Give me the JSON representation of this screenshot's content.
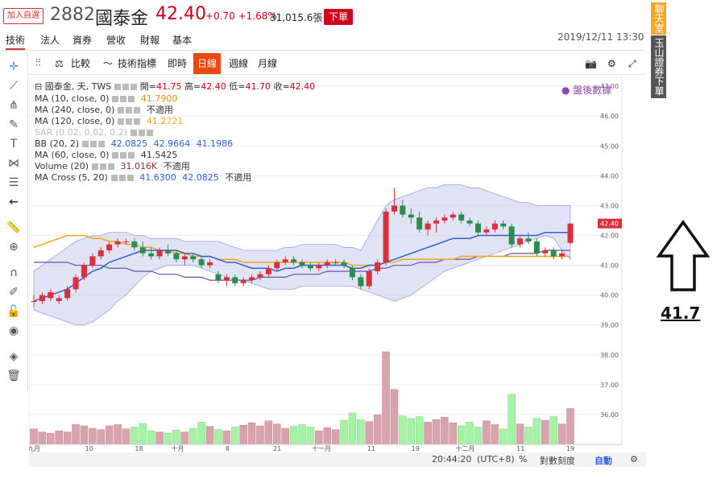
{
  "header": {
    "add_fav": "加入自選",
    "code": "2882",
    "name": "國泰金",
    "price": "42.40",
    "change": "+0.70 +1.68%",
    "volume": "31,015.6張",
    "order_btn": "下單",
    "datetime": "2019/12/11 13:30"
  },
  "main_tabs": [
    "技術",
    "法人",
    "資券",
    "營收",
    "財報",
    "基本"
  ],
  "toolbar": {
    "compare": "比較",
    "indicators": "技術指標",
    "realtime": "即時",
    "daily": "日線",
    "weekly": "週線",
    "monthly": "月線"
  },
  "legend": {
    "main": {
      "label": "國泰金, 天, TWS",
      "open_l": "開=",
      "open": "41.75",
      "high_l": "高=",
      "high": "42.40",
      "low_l": "低=",
      "low": "41.70",
      "close_l": "收=",
      "close": "42.40"
    },
    "ma10": {
      "label": "MA (10, close, 0)",
      "value": "41.7900"
    },
    "ma240": {
      "label": "MA (240, close, 0)",
      "value": "不適用"
    },
    "ma120": {
      "label": "MA (120, close, 0)",
      "value": "41.2721"
    },
    "sar": {
      "label": "SAR (0.02, 0.02, 0.2)"
    },
    "bb": {
      "label": "BB (20, 2)",
      "v1": "42.0825",
      "v2": "42.9664",
      "v3": "41.1986"
    },
    "ma60": {
      "label": "MA (60, close, 0)",
      "value": "41.5425"
    },
    "volume": {
      "label": "Volume (20)",
      "value": "31.016K",
      "value2": "不適用"
    },
    "macross": {
      "label": "MA Cross (5, 20)",
      "v1": "41.6300",
      "v2": "42.0825",
      "v3": "不適用"
    },
    "after_hours": "盤後數據"
  },
  "chart_data": {
    "type": "candlestick",
    "ylim": [
      35.0,
      47.3
    ],
    "yticks": [
      "47.00",
      "46.00",
      "45.00",
      "44.00",
      "43.00",
      "42.00",
      "41.00",
      "40.00",
      "39.00",
      "38.00",
      "37.00",
      "36.00"
    ],
    "last_price_tag": "42.40",
    "xticks": [
      "九月",
      "10",
      "18",
      "十月",
      "8",
      "21",
      "十一月",
      "11",
      "19",
      "十二月",
      "11",
      "19"
    ],
    "candles": [
      [
        39.8,
        40.0,
        39.6,
        39.8
      ],
      [
        39.8,
        40.1,
        39.7,
        40.0
      ],
      [
        39.9,
        40.2,
        39.8,
        40.1
      ],
      [
        39.8,
        40.0,
        39.7,
        39.9
      ],
      [
        39.9,
        40.3,
        39.8,
        40.2
      ],
      [
        40.2,
        40.7,
        40.1,
        40.6
      ],
      [
        40.6,
        41.1,
        40.5,
        41.0
      ],
      [
        41.0,
        41.4,
        40.9,
        41.3
      ],
      [
        41.3,
        41.6,
        41.2,
        41.5
      ],
      [
        41.5,
        41.8,
        41.4,
        41.7
      ],
      [
        41.7,
        41.9,
        41.6,
        41.8
      ],
      [
        41.8,
        41.9,
        41.7,
        41.8
      ],
      [
        41.8,
        41.9,
        41.5,
        41.6
      ],
      [
        41.6,
        41.8,
        41.3,
        41.4
      ],
      [
        41.4,
        41.6,
        41.2,
        41.3
      ],
      [
        41.3,
        41.6,
        41.2,
        41.5
      ],
      [
        41.5,
        41.7,
        41.3,
        41.4
      ],
      [
        41.4,
        41.5,
        41.1,
        41.2
      ],
      [
        41.2,
        41.4,
        41.0,
        41.3
      ],
      [
        41.3,
        41.4,
        41.1,
        41.2
      ],
      [
        41.2,
        41.3,
        40.9,
        41.0
      ],
      [
        41.0,
        41.2,
        40.9,
        41.1
      ],
      [
        40.7,
        40.8,
        40.4,
        40.5
      ],
      [
        40.5,
        40.7,
        40.3,
        40.6
      ],
      [
        40.6,
        40.7,
        40.3,
        40.4
      ],
      [
        40.4,
        40.6,
        40.3,
        40.5
      ],
      [
        40.5,
        40.7,
        40.4,
        40.6
      ],
      [
        40.6,
        40.8,
        40.5,
        40.7
      ],
      [
        40.7,
        41.0,
        40.6,
        40.9
      ],
      [
        40.9,
        41.2,
        40.8,
        41.1
      ],
      [
        41.1,
        41.3,
        41.0,
        41.2
      ],
      [
        41.2,
        41.3,
        41.0,
        41.1
      ],
      [
        41.1,
        41.2,
        40.9,
        41.0
      ],
      [
        41.0,
        41.1,
        40.8,
        40.9
      ],
      [
        40.9,
        41.1,
        40.8,
        41.0
      ],
      [
        41.0,
        41.2,
        40.9,
        41.1
      ],
      [
        41.1,
        41.2,
        41.0,
        41.1
      ],
      [
        41.1,
        41.2,
        40.9,
        41.0
      ],
      [
        40.9,
        41.0,
        40.5,
        40.6
      ],
      [
        40.6,
        40.7,
        40.2,
        40.3
      ],
      [
        40.3,
        40.9,
        40.2,
        40.8
      ],
      [
        40.8,
        41.2,
        40.7,
        41.1
      ],
      [
        41.1,
        42.9,
        41.0,
        42.8
      ],
      [
        42.8,
        43.6,
        42.7,
        43.0
      ],
      [
        43.0,
        43.2,
        42.6,
        42.7
      ],
      [
        42.7,
        42.9,
        42.4,
        42.6
      ],
      [
        42.6,
        42.8,
        42.1,
        42.2
      ],
      [
        42.2,
        42.5,
        42.0,
        42.4
      ],
      [
        42.4,
        42.6,
        42.1,
        42.5
      ],
      [
        42.5,
        42.7,
        42.4,
        42.6
      ],
      [
        42.6,
        42.8,
        42.5,
        42.7
      ],
      [
        42.7,
        42.8,
        42.4,
        42.5
      ],
      [
        42.5,
        42.6,
        42.3,
        42.4
      ],
      [
        42.4,
        42.5,
        42.0,
        42.1
      ],
      [
        42.1,
        42.3,
        42.0,
        42.2
      ],
      [
        42.2,
        42.5,
        42.1,
        42.4
      ],
      [
        42.4,
        42.5,
        42.2,
        42.3
      ],
      [
        42.3,
        42.4,
        41.6,
        41.7
      ],
      [
        41.7,
        42.0,
        41.6,
        41.9
      ],
      [
        41.9,
        42.1,
        41.7,
        41.8
      ],
      [
        41.8,
        41.9,
        41.3,
        41.4
      ],
      [
        41.4,
        41.6,
        41.3,
        41.5
      ],
      [
        41.5,
        41.6,
        41.2,
        41.3
      ],
      [
        41.3,
        41.5,
        41.2,
        41.4
      ],
      [
        41.75,
        42.4,
        41.7,
        42.4
      ]
    ],
    "volumes": [
      2.5,
      2.0,
      1.8,
      2.2,
      2.0,
      3.2,
      3.0,
      2.6,
      2.4,
      3.0,
      3.2,
      2.5,
      2.8,
      3.4,
      2.2,
      2.0,
      1.8,
      2.3,
      2.0,
      2.6,
      3.6,
      2.9,
      2.4,
      2.2,
      2.8,
      3.1,
      3.5,
      3.0,
      3.8,
      3.3,
      2.6,
      2.9,
      3.2,
      2.8,
      2.2,
      2.7,
      2.4,
      3.9,
      5.1,
      4.0,
      3.7,
      4.8,
      15.0,
      8.9,
      4.6,
      4.2,
      4.5,
      3.6,
      4.0,
      4.4,
      3.5,
      3.0,
      3.6,
      2.8,
      3.8,
      3.2,
      2.5,
      8.1,
      3.3,
      2.8,
      4.2,
      3.9,
      4.5,
      3.3,
      5.8
    ],
    "ma_orange": [
      41.6,
      41.7,
      41.8,
      41.9,
      42.0,
      42.0,
      42.0,
      41.9,
      41.9,
      41.8,
      41.8,
      41.7,
      41.7,
      41.6,
      41.6,
      41.5,
      41.5,
      41.4,
      41.4,
      41.3,
      41.3,
      41.3,
      41.2,
      41.2,
      41.2,
      41.1,
      41.1,
      41.1,
      41.1,
      41.1,
      41.1,
      41.1,
      41.1,
      41.1,
      41.1,
      41.1,
      41.1,
      41.1,
      41.0,
      41.0,
      41.0,
      41.0,
      41.1,
      41.1,
      41.2,
      41.2,
      41.2,
      41.2,
      41.2,
      41.2,
      41.2,
      41.3,
      41.3,
      41.3,
      41.3,
      41.3,
      41.3,
      41.3,
      41.3,
      41.3,
      41.3,
      41.3,
      41.3,
      41.3,
      41.3
    ],
    "ma_purple": [
      41.1,
      41.1,
      41.1,
      41.1,
      41.1,
      41.0,
      41.0,
      41.0,
      41.0,
      40.9,
      40.9,
      40.9,
      40.8,
      40.8,
      40.8,
      40.7,
      40.7,
      40.7,
      40.6,
      40.6,
      40.6,
      40.5,
      40.5,
      40.5,
      40.5,
      40.5,
      40.5,
      40.6,
      40.6,
      40.6,
      40.6,
      40.7,
      40.7,
      40.7,
      40.7,
      40.8,
      40.8,
      40.8,
      40.8,
      40.8,
      40.8,
      40.9,
      40.9,
      41.0,
      41.0,
      41.0,
      41.1,
      41.1,
      41.1,
      41.2,
      41.2,
      41.2,
      41.2,
      41.3,
      41.3,
      41.3,
      41.3,
      41.4,
      41.4,
      41.4,
      41.4,
      41.5,
      41.5,
      41.5,
      41.5
    ],
    "bb_mid": [
      39.8,
      39.9,
      40.0,
      40.1,
      40.2,
      40.4,
      40.6,
      40.8,
      40.9,
      41.1,
      41.2,
      41.3,
      41.4,
      41.5,
      41.5,
      41.5,
      41.5,
      41.5,
      41.4,
      41.4,
      41.3,
      41.3,
      41.2,
      41.1,
      41.1,
      41.0,
      40.9,
      40.9,
      40.9,
      40.8,
      40.9,
      40.9,
      41.0,
      41.0,
      41.0,
      41.0,
      41.0,
      41.0,
      40.9,
      40.9,
      41.0,
      41.0,
      41.1,
      41.2,
      41.3,
      41.4,
      41.5,
      41.6,
      41.7,
      41.8,
      41.9,
      41.9,
      41.9,
      42.0,
      42.0,
      42.0,
      42.0,
      42.0,
      42.0,
      42.0,
      42.0,
      42.1,
      42.1,
      42.1,
      42.1
    ],
    "bb_upper": [
      40.8,
      41.0,
      41.2,
      41.4,
      41.6,
      41.8,
      41.9,
      42.0,
      42.0,
      42.1,
      42.1,
      42.1,
      42.0,
      42.0,
      41.9,
      41.9,
      41.9,
      41.9,
      41.8,
      41.8,
      41.8,
      41.8,
      41.8,
      41.7,
      41.6,
      41.5,
      41.5,
      41.5,
      41.5,
      41.5,
      41.6,
      41.6,
      41.7,
      41.7,
      41.7,
      41.7,
      41.7,
      41.6,
      41.6,
      41.5,
      42.0,
      42.5,
      43.0,
      43.2,
      43.3,
      43.4,
      43.5,
      43.6,
      43.6,
      43.7,
      43.7,
      43.7,
      43.6,
      43.6,
      43.5,
      43.4,
      43.3,
      43.2,
      43.1,
      43.1,
      43.0,
      43.0,
      43.0,
      43.0,
      43.0
    ],
    "bb_lower": [
      39.5,
      39.4,
      39.3,
      39.2,
      39.1,
      39.0,
      39.0,
      39.1,
      39.3,
      39.5,
      39.8,
      40.0,
      40.3,
      40.6,
      40.8,
      40.9,
      41.0,
      41.0,
      41.0,
      41.0,
      40.9,
      40.8,
      40.7,
      40.6,
      40.5,
      40.5,
      40.4,
      40.3,
      40.2,
      40.2,
      40.2,
      40.2,
      40.3,
      40.3,
      40.3,
      40.3,
      40.3,
      40.3,
      40.3,
      40.2,
      40.1,
      40.0,
      39.9,
      39.8,
      39.9,
      40.0,
      40.2,
      40.4,
      40.6,
      40.8,
      40.9,
      41.0,
      41.1,
      41.2,
      41.3,
      41.4,
      41.5,
      41.6,
      41.7,
      41.8,
      41.9,
      42.0,
      41.9,
      41.5,
      41.2
    ]
  },
  "status": {
    "time": "20:44:20",
    "tz": "(UTC+8)",
    "pct": "%",
    "log": "對數刻度",
    "auto": "自動"
  },
  "right_panel": {
    "chat": "聊天室",
    "broker": "玉山證券下單",
    "annotation": "41.7"
  },
  "colors": {
    "up": "#d9303a",
    "down": "#2c8c4d",
    "ma_orange": "#f5a623",
    "ma_blue": "#2e5fd9",
    "ma_purple": "#6a4fa3",
    "bb_fill": "#c8cdee"
  }
}
